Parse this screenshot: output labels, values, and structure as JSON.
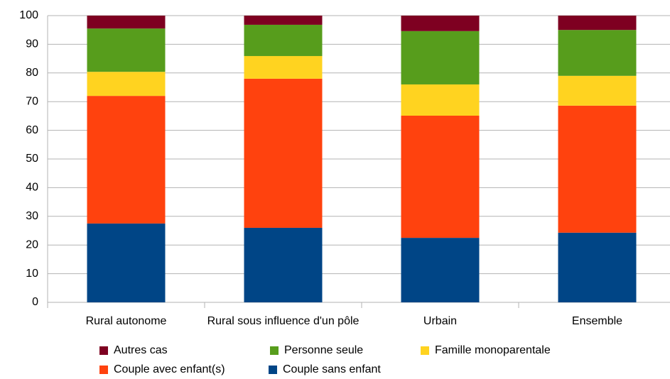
{
  "chart_data": {
    "type": "stacked_bar",
    "categories": [
      "Rural autonome",
      "Rural sous influence d'un pôle",
      "Urbain",
      "Ensemble"
    ],
    "series": [
      {
        "name": "Couple sans enfant",
        "color": "#004586",
        "values": [
          27.5,
          26,
          22.5,
          24.3
        ]
      },
      {
        "name": "Couple avec enfant(s)",
        "color": "#ff420e",
        "values": [
          44.5,
          52,
          42.6,
          44.3
        ]
      },
      {
        "name": "Famille monoparentale",
        "color": "#ffd320",
        "values": [
          8.4,
          7.9,
          10.9,
          10.4
        ]
      },
      {
        "name": "Personne seule",
        "color": "#579d1c",
        "values": [
          15.1,
          10.9,
          18.6,
          16
        ]
      },
      {
        "name": "Autres cas",
        "color": "#7e0021",
        "values": [
          4.5,
          3.2,
          5.4,
          5
        ]
      }
    ],
    "ylim": [
      0,
      100
    ],
    "yticks": [
      0,
      10,
      20,
      30,
      40,
      50,
      60,
      70,
      80,
      90,
      100
    ],
    "grid": true
  }
}
